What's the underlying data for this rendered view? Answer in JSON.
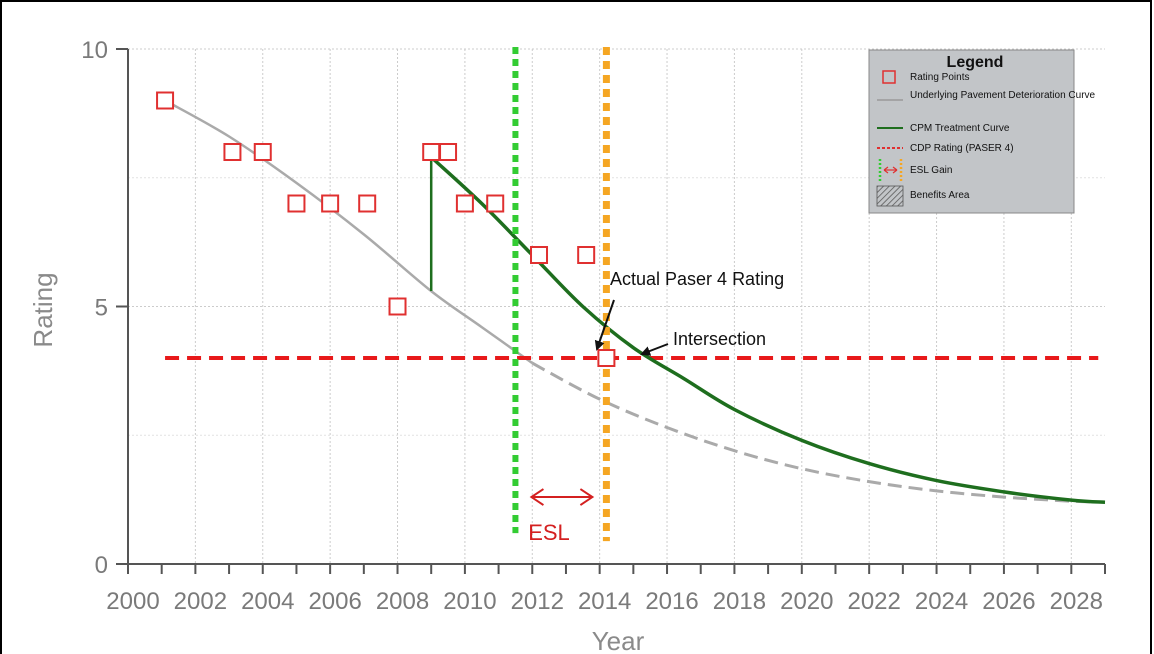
{
  "chart_data": {
    "type": "line",
    "title": "",
    "xlabel": "Year",
    "ylabel": "Rating",
    "xlim": [
      2000,
      2029
    ],
    "ylim": [
      0,
      10
    ],
    "x_ticks": [
      "2000",
      "2002",
      "2004",
      "2006",
      "2008",
      "2010",
      "2012",
      "2014",
      "2016",
      "2018",
      "2020",
      "2022",
      "2024",
      "2026",
      "2028"
    ],
    "y_ticks": [
      "0",
      "5",
      "10"
    ],
    "grid": true,
    "rating_points": [
      {
        "x": 2001.1,
        "y": 9
      },
      {
        "x": 2003.1,
        "y": 8
      },
      {
        "x": 2004.0,
        "y": 8
      },
      {
        "x": 2005.0,
        "y": 7
      },
      {
        "x": 2006.0,
        "y": 7
      },
      {
        "x": 2007.1,
        "y": 7
      },
      {
        "x": 2008.0,
        "y": 5
      },
      {
        "x": 2009.0,
        "y": 8
      },
      {
        "x": 2009.5,
        "y": 8
      },
      {
        "x": 2010.0,
        "y": 7
      },
      {
        "x": 2010.9,
        "y": 7
      },
      {
        "x": 2012.2,
        "y": 6
      },
      {
        "x": 2013.6,
        "y": 6
      },
      {
        "x": 2014.2,
        "y": 4
      }
    ],
    "deterioration_curve": [
      {
        "x": 2001.1,
        "y": 9.0
      },
      {
        "x": 2003.0,
        "y": 8.3
      },
      {
        "x": 2005.0,
        "y": 7.4
      },
      {
        "x": 2007.0,
        "y": 6.4
      },
      {
        "x": 2009.0,
        "y": 5.3
      },
      {
        "x": 2010.5,
        "y": 4.6
      },
      {
        "x": 2012.0,
        "y": 3.9
      },
      {
        "x": 2014.0,
        "y": 3.2
      },
      {
        "x": 2016.0,
        "y": 2.65
      },
      {
        "x": 2018.0,
        "y": 2.2
      },
      {
        "x": 2020.0,
        "y": 1.85
      },
      {
        "x": 2022.0,
        "y": 1.6
      },
      {
        "x": 2024.0,
        "y": 1.42
      },
      {
        "x": 2026.0,
        "y": 1.3
      },
      {
        "x": 2028.0,
        "y": 1.22
      },
      {
        "x": 2029.0,
        "y": 1.2
      }
    ],
    "treatment_curve": [
      {
        "x": 2009.0,
        "y": 7.9
      },
      {
        "x": 2010.5,
        "y": 7.0
      },
      {
        "x": 2012.0,
        "y": 6.0
      },
      {
        "x": 2013.5,
        "y": 5.0
      },
      {
        "x": 2015.0,
        "y": 4.2
      },
      {
        "x": 2016.5,
        "y": 3.6
      },
      {
        "x": 2018.0,
        "y": 3.0
      },
      {
        "x": 2020.0,
        "y": 2.4
      },
      {
        "x": 2022.0,
        "y": 1.95
      },
      {
        "x": 2024.0,
        "y": 1.62
      },
      {
        "x": 2026.0,
        "y": 1.4
      },
      {
        "x": 2028.0,
        "y": 1.24
      },
      {
        "x": 2029.0,
        "y": 1.2
      }
    ],
    "treatment_jump": {
      "x": 2009.0,
      "from": 5.3,
      "to": 7.9
    },
    "cdp_rating": {
      "y": 4,
      "x_start": 2001.1,
      "x_end": 2028.8
    },
    "esl_lines": {
      "start": 2011.5,
      "end": 2014.2,
      "y_bottom": 0.6
    },
    "legend": {
      "title": "Legend",
      "items": [
        {
          "label": "Rating Points",
          "symbol": "square",
          "color": "#e03030"
        },
        {
          "label": "Underlying Pavement Deterioration Curve",
          "symbol": "line",
          "color": "#aaaaaa"
        },
        {
          "label": "CPM Treatment Curve",
          "symbol": "line",
          "color": "#1e6e1e"
        },
        {
          "label": "CDP Rating (PASER 4)",
          "symbol": "dashed",
          "color": "#e03030"
        },
        {
          "label": "ESL Gain",
          "symbol": "esl",
          "color": "#e03030"
        },
        {
          "label": "Benefits Area",
          "symbol": "hatch",
          "color": "#777777"
        }
      ]
    },
    "annotations": {
      "actual": "Actual Paser 4 Rating",
      "intersection": "Intersection",
      "esl": "ESL"
    },
    "colors": {
      "points": "#e03030",
      "deterioration": "#aaaaaa",
      "treatment": "#1e6e1e",
      "cdp": "#e8191a",
      "esl_start": "#33cc33",
      "esl_end": "#f5a623",
      "grid": "#cccccc",
      "legend_bg": "#c2c5c8"
    }
  }
}
